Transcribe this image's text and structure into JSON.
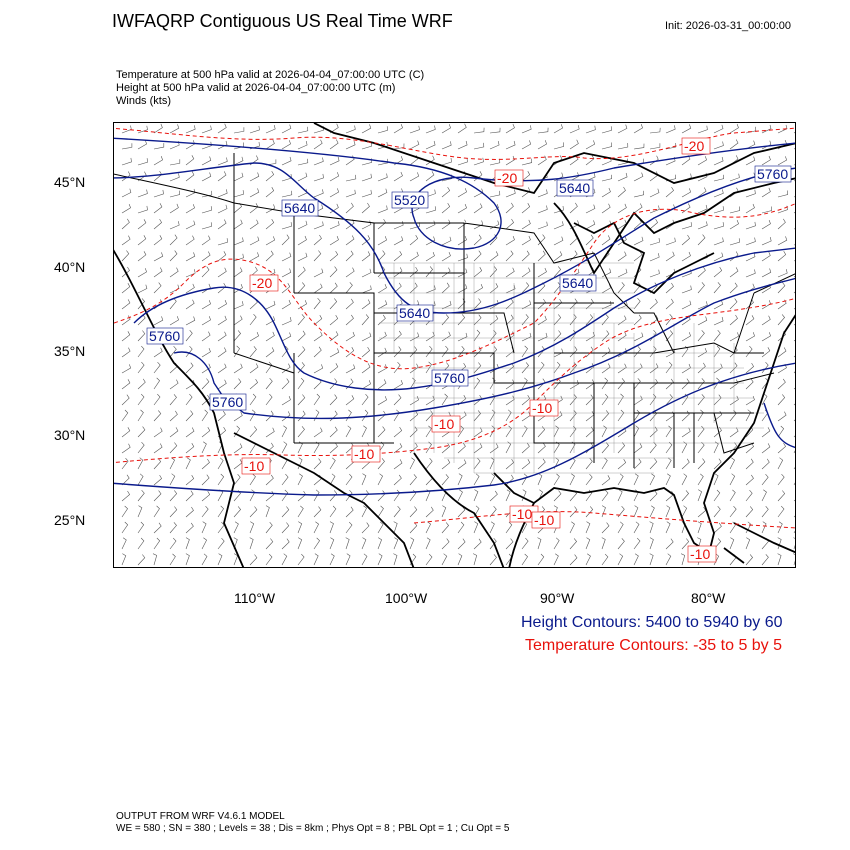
{
  "header": {
    "title": "IWFAQRP Contiguous US Real Time WRF",
    "init": "Init: 2026-03-31_00:00:00"
  },
  "fields": [
    "Temperature at 500 hPa valid at 2026-04-04_07:00:00 UTC   (C)",
    "Height at 500 hPa valid at 2026-04-04_07:00:00 UTC   (m)",
    "Winds   (kts)"
  ],
  "axes": {
    "lat_labels": [
      "45°N",
      "40°N",
      "35°N",
      "30°N",
      "25°N"
    ],
    "lon_labels": [
      "110°W",
      "100°W",
      "90°W",
      "80°W"
    ]
  },
  "contour_labels": {
    "height": [
      "5640",
      "5520",
      "5640",
      "5640",
      "5760",
      "5640",
      "5760",
      "5760",
      "5760"
    ],
    "temperature": [
      "-20",
      "-20",
      "-20",
      "-10",
      "-10",
      "-10",
      "-10",
      "-10",
      "-10",
      "-10"
    ]
  },
  "legend": {
    "height": "Height Contours: 5400 to 5940 by 60",
    "temperature": "Temperature Contours: -35 to 5 by 5"
  },
  "footer": {
    "line1": "OUTPUT FROM WRF V4.6.1 MODEL",
    "line2": "WE = 580 ; SN = 380 ; Levels = 38 ; Dis = 8km ; Phys Opt = 8 ; PBL Opt = 1 ; Cu Opt = 5"
  },
  "colors": {
    "height": "#0a1a8c",
    "temperature": "#e8120c",
    "boundaries": "#000000"
  }
}
